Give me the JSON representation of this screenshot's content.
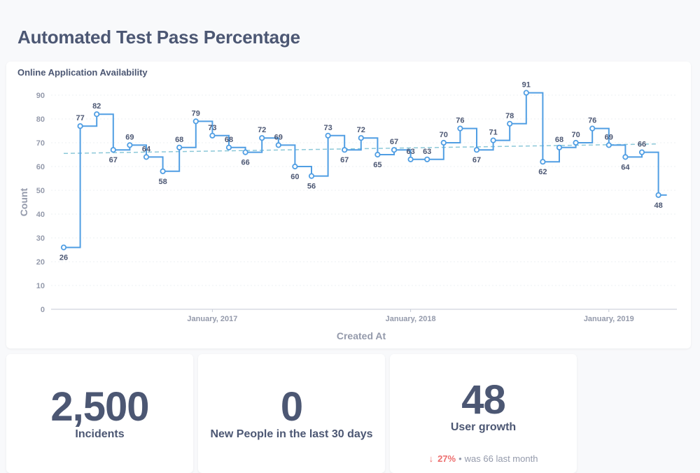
{
  "page": {
    "title": "Automated Test Pass Percentage"
  },
  "chart_card": {
    "title": "Online Application Availability"
  },
  "chart_data": {
    "type": "line",
    "title": "Online Application Availability",
    "xlabel": "Created At",
    "ylabel": "Count",
    "ylim": [
      0,
      90
    ],
    "yticks": [
      "0",
      "10",
      "20",
      "30",
      "40",
      "50",
      "60",
      "70",
      "80",
      "90"
    ],
    "xtick_labels": [
      "January, 2017",
      "January, 2018",
      "January, 2019"
    ],
    "x": [
      "2016-04",
      "2016-05",
      "2016-06",
      "2016-07",
      "2016-08",
      "2016-09",
      "2016-10",
      "2016-11",
      "2016-12",
      "2017-01",
      "2017-02",
      "2017-03",
      "2017-04",
      "2017-05",
      "2017-06",
      "2017-07",
      "2017-08",
      "2017-09",
      "2017-10",
      "2017-11",
      "2017-12",
      "2018-01",
      "2018-02",
      "2018-03",
      "2018-04",
      "2018-05",
      "2018-06",
      "2018-07",
      "2018-08",
      "2018-09",
      "2018-10",
      "2018-11",
      "2018-12",
      "2019-01",
      "2019-02",
      "2019-03",
      "2019-04"
    ],
    "series": [
      {
        "values": [
          26,
          77,
          82,
          67,
          69,
          64,
          58,
          68,
          79,
          73,
          68,
          66,
          72,
          69,
          60,
          56,
          73,
          67,
          72,
          65,
          67,
          63,
          63,
          70,
          76,
          67,
          71,
          78,
          91,
          62,
          68,
          70,
          76,
          69,
          64,
          66,
          48
        ],
        "step": true,
        "color": "#509ee3"
      }
    ],
    "trendline": {
      "style": "dashed",
      "color": "#8cc8d8",
      "start": 65.5,
      "end": 69.5
    },
    "grid": true,
    "legend": "none"
  },
  "scalars": [
    {
      "value": "2,500",
      "label": "Incidents"
    },
    {
      "value": "0",
      "label": "New People in the last 30 days"
    },
    {
      "value": "48",
      "label": "User growth",
      "trend": {
        "arrow": "↓",
        "percent": "27%",
        "separator": "•",
        "comparison": "was 66 last month"
      }
    }
  ],
  "colors": {
    "accent": "#509ee3",
    "text": "#4c5773",
    "down": "#ed6e6e",
    "muted": "#949aab"
  }
}
